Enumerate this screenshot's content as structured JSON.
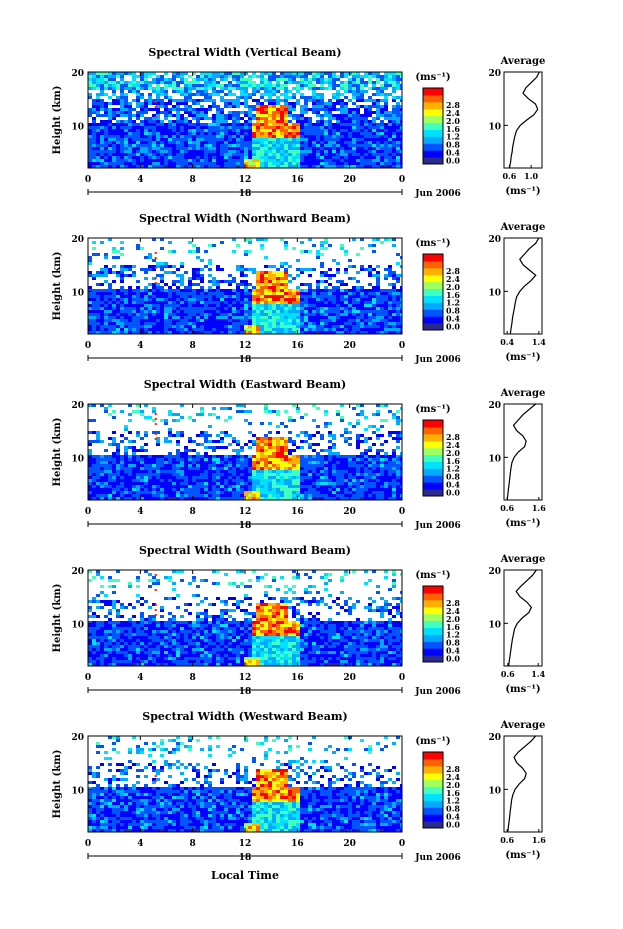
{
  "figure": {
    "date_label": "Jun 2006",
    "x_axis_label": "Local Time",
    "y_axis_label": "Height (km)",
    "colorbar_unit": "(ms⁻¹)",
    "colorbar_ticks": [
      "0.0",
      "0.4",
      "0.8",
      "1.2",
      "1.6",
      "2.0",
      "2.4",
      "2.8"
    ],
    "colorbar_colors": [
      "#2a2a8c",
      "#0000ff",
      "#0055ff",
      "#00aaff",
      "#00e0ff",
      "#40ffc0",
      "#a0ff60",
      "#ffff00",
      "#ffb000",
      "#ff6000",
      "#ff0000"
    ],
    "x_ticks": [
      "0",
      "4",
      "8",
      "12",
      "16",
      "20",
      "0"
    ],
    "day_label": "18",
    "y_ticks": [
      "20",
      "10"
    ],
    "average_title": "Average",
    "average_unit": "(ms⁻¹)"
  },
  "chart_data": [
    {
      "type": "heatmap",
      "title": "Spectral Width (Vertical Beam)",
      "x_range": [
        0,
        24
      ],
      "y_range": [
        2,
        20
      ],
      "hotspot": {
        "start_hour": 12.5,
        "end_hour": 16
      },
      "profile": {
        "x_ticks": [
          "0.6",
          "1.0"
        ],
        "x_range": [
          0.5,
          1.2
        ],
        "height": [
          2,
          3,
          4,
          5,
          6,
          7,
          8,
          9,
          10,
          11,
          12,
          13,
          14,
          15,
          16,
          17,
          18,
          19,
          20
        ],
        "values": [
          0.6,
          0.62,
          0.63,
          0.65,
          0.66,
          0.68,
          0.7,
          0.73,
          0.8,
          0.92,
          1.05,
          1.12,
          1.08,
          0.95,
          0.85,
          0.9,
          1.0,
          1.1,
          1.15
        ]
      }
    },
    {
      "type": "heatmap",
      "title": "Spectral Width (Northward Beam)",
      "x_range": [
        0,
        24
      ],
      "y_range": [
        2,
        20
      ],
      "hotspot": {
        "start_hour": 12.5,
        "end_hour": 16
      },
      "profile": {
        "x_ticks": [
          "0.4",
          "1.4"
        ],
        "x_range": [
          0.3,
          1.5
        ],
        "height": [
          2,
          3,
          4,
          5,
          6,
          7,
          8,
          9,
          10,
          11,
          12,
          13,
          14,
          15,
          16,
          17,
          18,
          19,
          20
        ],
        "values": [
          0.5,
          0.52,
          0.55,
          0.57,
          0.6,
          0.63,
          0.66,
          0.7,
          0.8,
          0.95,
          1.15,
          1.3,
          1.1,
          0.9,
          0.8,
          0.95,
          1.1,
          1.3,
          1.4
        ]
      }
    },
    {
      "type": "heatmap",
      "title": "Spectral Width (Eastward Beam)",
      "x_range": [
        0,
        24
      ],
      "y_range": [
        2,
        20
      ],
      "hotspot": {
        "start_hour": 12.5,
        "end_hour": 16
      },
      "profile": {
        "x_ticks": [
          "0.6",
          "1.6"
        ],
        "x_range": [
          0.5,
          1.7
        ],
        "height": [
          2,
          3,
          4,
          5,
          6,
          7,
          8,
          9,
          10,
          11,
          12,
          13,
          14,
          15,
          16,
          17,
          18,
          19,
          20
        ],
        "values": [
          0.6,
          0.62,
          0.64,
          0.66,
          0.68,
          0.7,
          0.72,
          0.75,
          0.82,
          0.95,
          1.15,
          1.2,
          1.1,
          0.9,
          0.8,
          0.95,
          1.1,
          1.3,
          1.5
        ]
      }
    },
    {
      "type": "heatmap",
      "title": "Spectral Width (Southward Beam)",
      "x_range": [
        0,
        24
      ],
      "y_range": [
        2,
        20
      ],
      "hotspot": {
        "start_hour": 12.5,
        "end_hour": 16
      },
      "profile": {
        "x_ticks": [
          "0.6",
          "1.4"
        ],
        "x_range": [
          0.5,
          1.5
        ],
        "height": [
          2,
          3,
          4,
          5,
          6,
          7,
          8,
          9,
          10,
          11,
          12,
          13,
          14,
          15,
          16,
          17,
          18,
          19,
          20
        ],
        "values": [
          0.62,
          0.64,
          0.66,
          0.68,
          0.7,
          0.72,
          0.75,
          0.78,
          0.85,
          0.98,
          1.15,
          1.22,
          1.1,
          0.92,
          0.82,
          0.95,
          1.1,
          1.25,
          1.35
        ]
      }
    },
    {
      "type": "heatmap",
      "title": "Spectral Width (Westward Beam)",
      "x_range": [
        0,
        24
      ],
      "y_range": [
        2,
        20
      ],
      "hotspot": {
        "start_hour": 12.5,
        "end_hour": 16
      },
      "profile": {
        "x_ticks": [
          "0.6",
          "1.6"
        ],
        "x_range": [
          0.5,
          1.7
        ],
        "height": [
          2,
          3,
          4,
          5,
          6,
          7,
          8,
          9,
          10,
          11,
          12,
          13,
          14,
          15,
          16,
          17,
          18,
          19,
          20
        ],
        "values": [
          0.62,
          0.64,
          0.66,
          0.68,
          0.7,
          0.72,
          0.74,
          0.78,
          0.85,
          0.98,
          1.15,
          1.2,
          1.08,
          0.9,
          0.82,
          0.95,
          1.15,
          1.35,
          1.5
        ]
      }
    }
  ]
}
